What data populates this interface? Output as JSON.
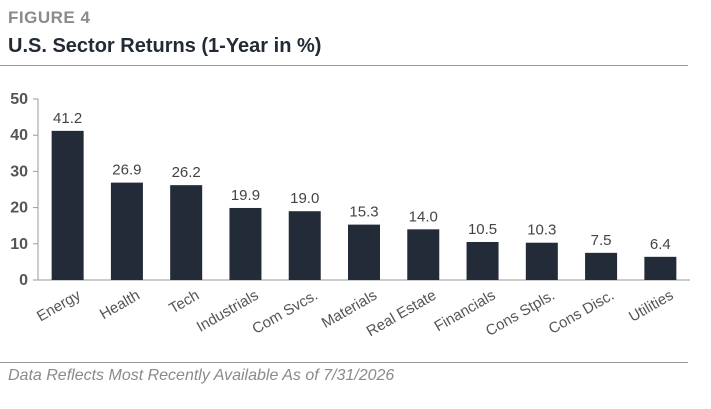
{
  "header": {
    "figure_label": "FIGURE 4",
    "title": "U.S. Sector Returns (1-Year in %)"
  },
  "footnote": "Data Reflects Most Recently Available As of 7/31/2026",
  "colors": {
    "bar": "#232a38",
    "axis_text": "#555555",
    "value_text": "#444444",
    "axis_line": "#9a9a9a"
  },
  "chart_data": {
    "type": "bar",
    "categories": [
      "Energy",
      "Health",
      "Tech",
      "Industrials",
      "Com Svcs.",
      "Materials",
      "Real Estate",
      "Financials",
      "Cons Stpls.",
      "Cons Disc.",
      "Utilities"
    ],
    "values": [
      41.2,
      26.9,
      26.2,
      19.9,
      19.0,
      15.3,
      14.0,
      10.5,
      10.3,
      7.5,
      6.4
    ],
    "value_labels": [
      "41.2",
      "26.9",
      "26.2",
      "19.9",
      "19.0",
      "15.3",
      "14.0",
      "10.5",
      "10.3",
      "7.5",
      "6.4"
    ],
    "yticks": [
      0,
      10,
      20,
      30,
      40,
      50
    ],
    "ylim": [
      0,
      50
    ],
    "title": "U.S. Sector Returns (1-Year in %)",
    "xlabel": "",
    "ylabel": "",
    "grid": false,
    "legend": "none"
  }
}
